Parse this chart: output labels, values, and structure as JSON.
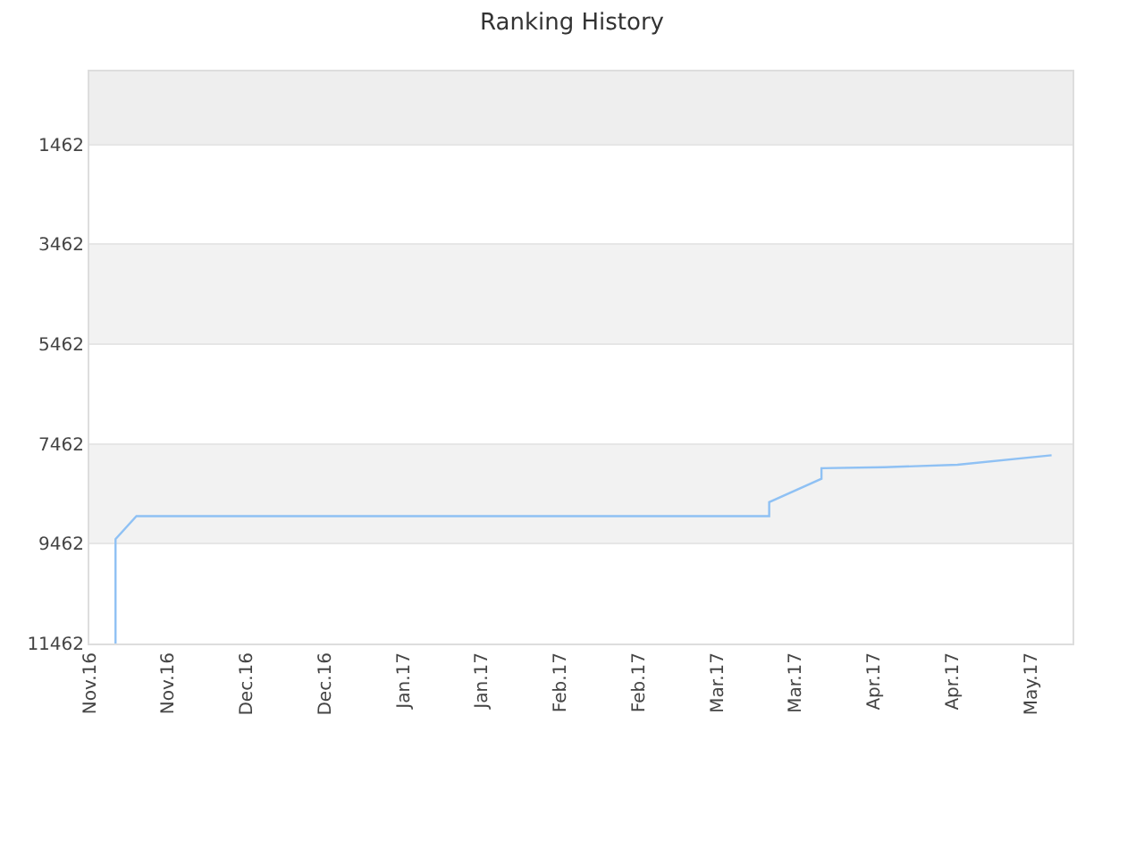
{
  "chart_data": {
    "type": "line",
    "title": "Ranking History",
    "x": [
      "2016-11-08",
      "2016-11-08",
      "2016-11-12",
      "2017-03-13",
      "2017-03-13",
      "2017-03-23",
      "2017-03-23",
      "2017-04-04",
      "2017-04-18",
      "2017-05-06"
    ],
    "series": [
      {
        "color": "#8fc1f4",
        "values": [
          11462,
          9370,
          8910,
          8910,
          8630,
          8160,
          7950,
          7930,
          7880,
          7690
        ]
      }
    ],
    "xlim": [
      "2016-11-03",
      "2017-05-10"
    ],
    "xticks": [
      {
        "value": "2016-11-03",
        "label": "Nov.16"
      },
      {
        "value": "2016-11-18",
        "label": "Nov.16"
      },
      {
        "value": "2016-12-03",
        "label": "Dec.16"
      },
      {
        "value": "2016-12-18",
        "label": "Dec.16"
      },
      {
        "value": "2017-01-02",
        "label": "Jan.17"
      },
      {
        "value": "2017-01-17",
        "label": "Jan.17"
      },
      {
        "value": "2017-02-01",
        "label": "Feb.17"
      },
      {
        "value": "2017-02-16",
        "label": "Feb.17"
      },
      {
        "value": "2017-03-03",
        "label": "Mar.17"
      },
      {
        "value": "2017-03-18",
        "label": "Mar.17"
      },
      {
        "value": "2017-04-02",
        "label": "Apr.17"
      },
      {
        "value": "2017-04-17",
        "label": "Apr.17"
      },
      {
        "value": "2017-05-02",
        "label": "May.17"
      }
    ],
    "ylim": [
      11462,
      0
    ],
    "yticks": [
      1462,
      3462,
      5462,
      7462,
      9462,
      11462
    ],
    "bands": [
      {
        "axis": "y",
        "from": 0,
        "to": 1462,
        "color": "#eeeeee"
      },
      {
        "axis": "y",
        "from": 3462,
        "to": 5462,
        "color": "#f2f2f2"
      },
      {
        "axis": "y",
        "from": 7462,
        "to": 9462,
        "color": "#f2f2f2"
      }
    ],
    "grid": "y",
    "marker": "none",
    "line_style": "solid"
  }
}
